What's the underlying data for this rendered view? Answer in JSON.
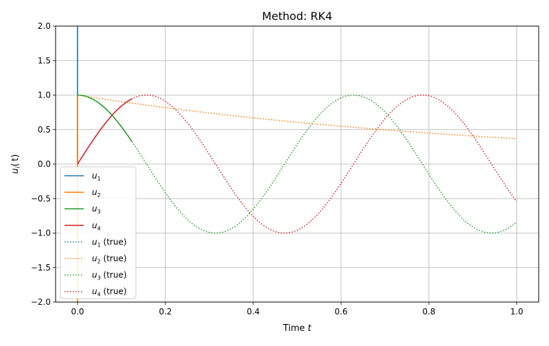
{
  "chart_data": {
    "type": "line",
    "title": "Method: RK4",
    "xlabel": "Time t",
    "ylabel": "u_i(t)",
    "xlim": [
      -0.05,
      1.05
    ],
    "ylim": [
      -2.0,
      2.0
    ],
    "xticks": [
      0.0,
      0.2,
      0.4,
      0.6,
      0.8,
      1.0
    ],
    "xtick_labels": [
      "0.0",
      "0.2",
      "0.4",
      "0.6",
      "0.8",
      "1.0"
    ],
    "yticks": [
      -2.0,
      -1.5,
      -1.0,
      -0.5,
      0.0,
      0.5,
      1.0,
      1.5,
      2.0
    ],
    "ytick_labels": [
      "−2.0",
      "−1.5",
      "−1.0",
      "−0.5",
      "0.0",
      "0.5",
      "1.0",
      "1.5",
      "2.0"
    ],
    "grid": true,
    "legend_position": "lower-left",
    "series": [
      {
        "name": "u1",
        "style": "solid",
        "color": "#1f77b4",
        "x": [
          0.0,
          0.0
        ],
        "y": [
          0.0,
          2.0
        ]
      },
      {
        "name": "u2",
        "style": "solid",
        "color": "#ff7f0e",
        "x": [
          0.0,
          0.0
        ],
        "y": [
          -2.0,
          1.0
        ]
      },
      {
        "name": "u3",
        "style": "solid",
        "color": "#2ca02c",
        "t_end": 0.125,
        "formula": "cos(10t)"
      },
      {
        "name": "u4",
        "style": "solid",
        "color": "#d62728",
        "t_end": 0.125,
        "formula": "sin(10t)"
      },
      {
        "name": "u1 (true)",
        "style": "dotted",
        "color": "#1f77b4",
        "x": [
          0.0,
          0.0
        ],
        "y": [
          1.0,
          2.0
        ]
      },
      {
        "name": "u2 (true)",
        "style": "dotted",
        "color": "#ff7f0e",
        "t_end": 1.0,
        "formula": "exp(-t)"
      },
      {
        "name": "u3 (true)",
        "style": "dotted",
        "color": "#2ca02c",
        "t_end": 1.0,
        "formula": "cos(10t)"
      },
      {
        "name": "u4 (true)",
        "style": "dotted",
        "color": "#d62728",
        "t_end": 1.0,
        "formula": "sin(10t)"
      }
    ]
  }
}
